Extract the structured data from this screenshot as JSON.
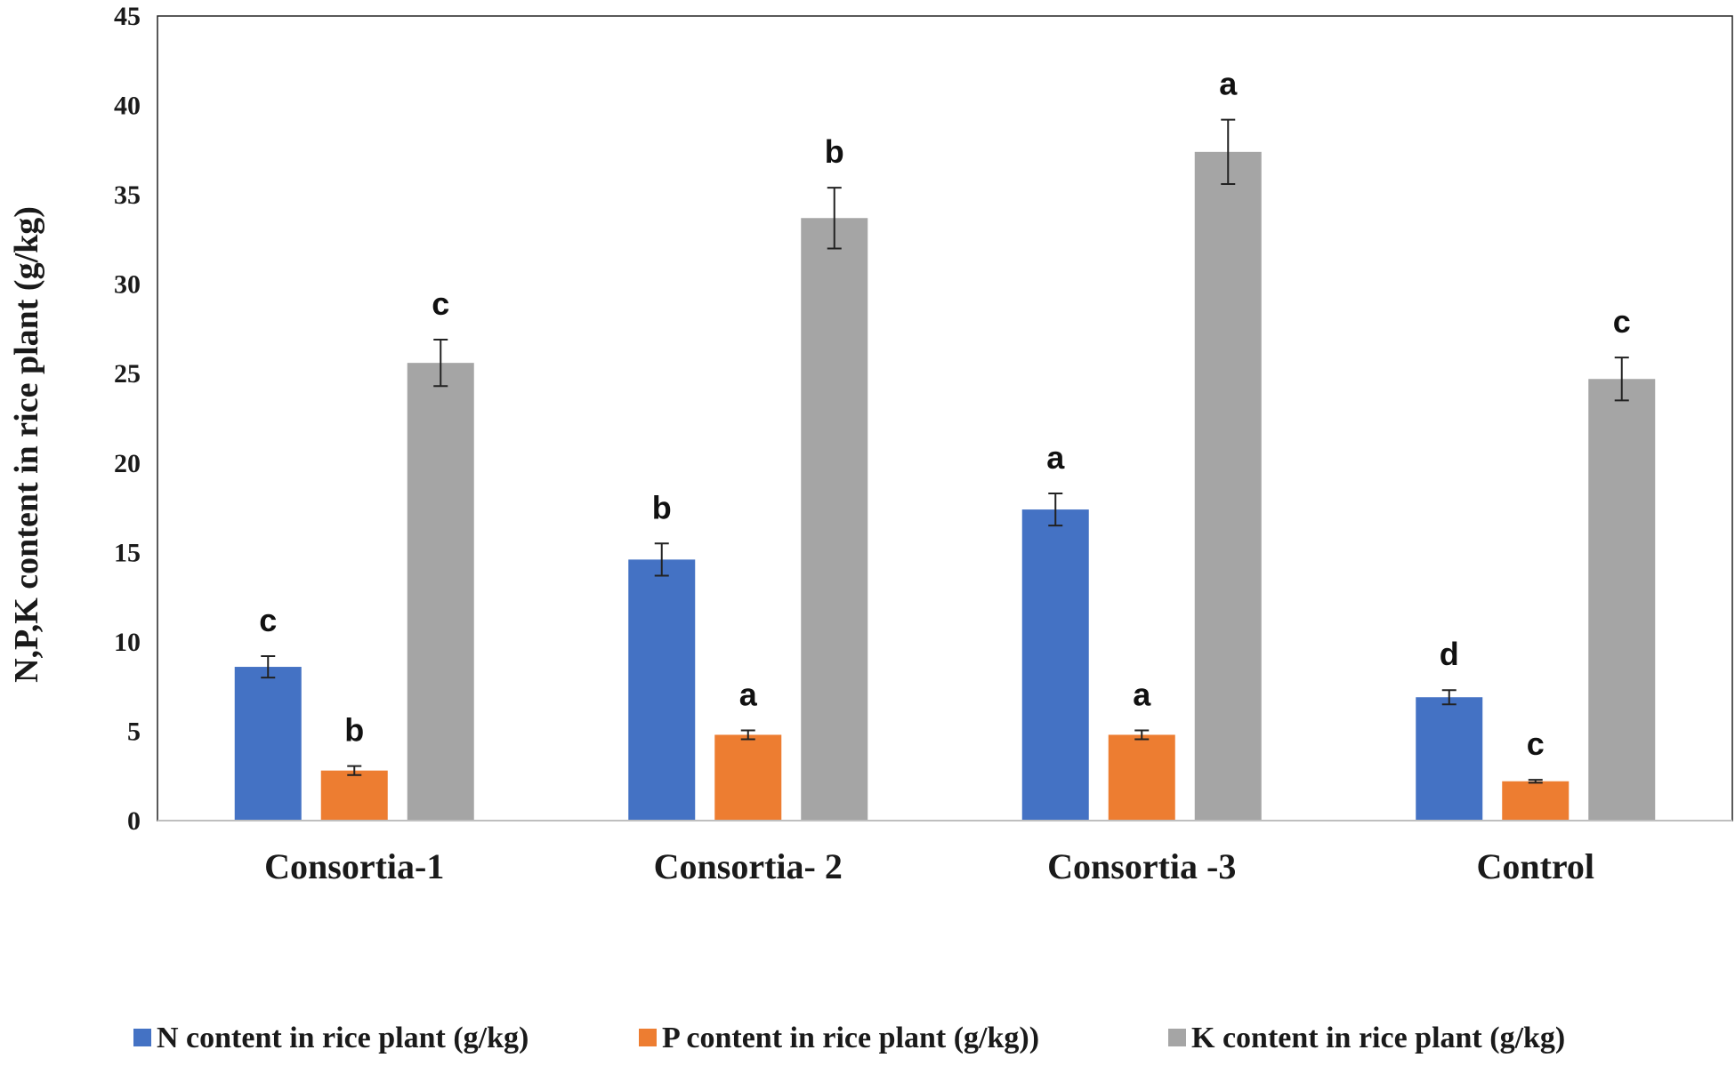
{
  "chart_data": {
    "type": "bar",
    "title": "",
    "xlabel": "",
    "ylabel": "N,P,K content in rice plant (g/kg)",
    "ylim": [
      0,
      45
    ],
    "yticks": [
      0,
      5,
      10,
      15,
      20,
      25,
      30,
      35,
      40,
      45
    ],
    "grid": false,
    "legend_position": "bottom",
    "categories": [
      "Consortia-1",
      "Consortia- 2",
      "Consortia -3",
      "Control"
    ],
    "series": [
      {
        "name": "N content in rice plant (g/kg)",
        "color": "#4472c4",
        "values": [
          8.6,
          14.6,
          17.4,
          6.9
        ],
        "errors": [
          0.6,
          0.9,
          0.9,
          0.4
        ],
        "letters": [
          "c",
          "b",
          "a",
          "d"
        ]
      },
      {
        "name": "P content in rice plant (g/kg))",
        "color": "#ed7d31",
        "values": [
          2.8,
          4.8,
          4.8,
          2.2
        ],
        "errors": [
          0.25,
          0.25,
          0.25,
          0.08
        ],
        "letters": [
          "b",
          "a",
          "a",
          "c"
        ]
      },
      {
        "name": "K content in rice plant (g/kg)",
        "color": "#a5a5a5",
        "values": [
          25.6,
          33.7,
          37.4,
          24.7
        ],
        "errors": [
          1.3,
          1.7,
          1.8,
          1.2
        ],
        "letters": [
          "c",
          "b",
          "a",
          "c"
        ]
      }
    ]
  }
}
